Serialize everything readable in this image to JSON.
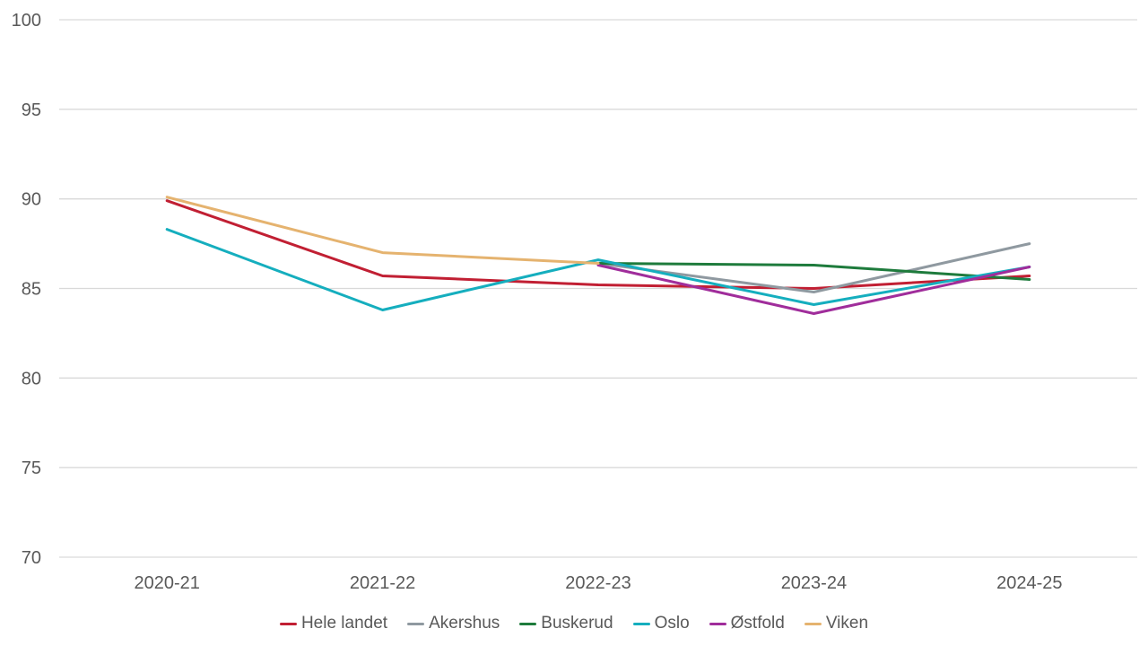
{
  "chart_data": {
    "type": "line",
    "title": "",
    "xlabel": "",
    "ylabel": "",
    "categories": [
      "2020-21",
      "2021-22",
      "2022-23",
      "2023-24",
      "2024-25"
    ],
    "series": [
      {
        "name": "Hele landet",
        "color": "#C11F33",
        "values": [
          89.9,
          85.7,
          85.2,
          85.0,
          85.7
        ]
      },
      {
        "name": "Akershus",
        "color": "#8F99A0",
        "values": [
          null,
          null,
          86.4,
          84.8,
          87.5
        ]
      },
      {
        "name": "Buskerud",
        "color": "#1E7B3C",
        "values": [
          null,
          null,
          86.4,
          86.3,
          85.5
        ]
      },
      {
        "name": "Oslo",
        "color": "#15AEBE",
        "values": [
          88.3,
          83.8,
          86.6,
          84.1,
          86.2
        ]
      },
      {
        "name": "Østfold",
        "color": "#A02D9B",
        "values": [
          null,
          null,
          86.3,
          83.6,
          86.2
        ]
      },
      {
        "name": "Viken",
        "color": "#E5B36F",
        "values": [
          90.1,
          87.0,
          86.4,
          null,
          null
        ]
      }
    ],
    "ylim": [
      70,
      100
    ],
    "yticks": [
      70,
      75,
      80,
      85,
      90,
      95,
      100
    ],
    "grid": "horizontal",
    "grid_color": "#D9D9D9",
    "text_color": "#595959",
    "background": "#FFFFFF",
    "legend_position": "bottom"
  }
}
